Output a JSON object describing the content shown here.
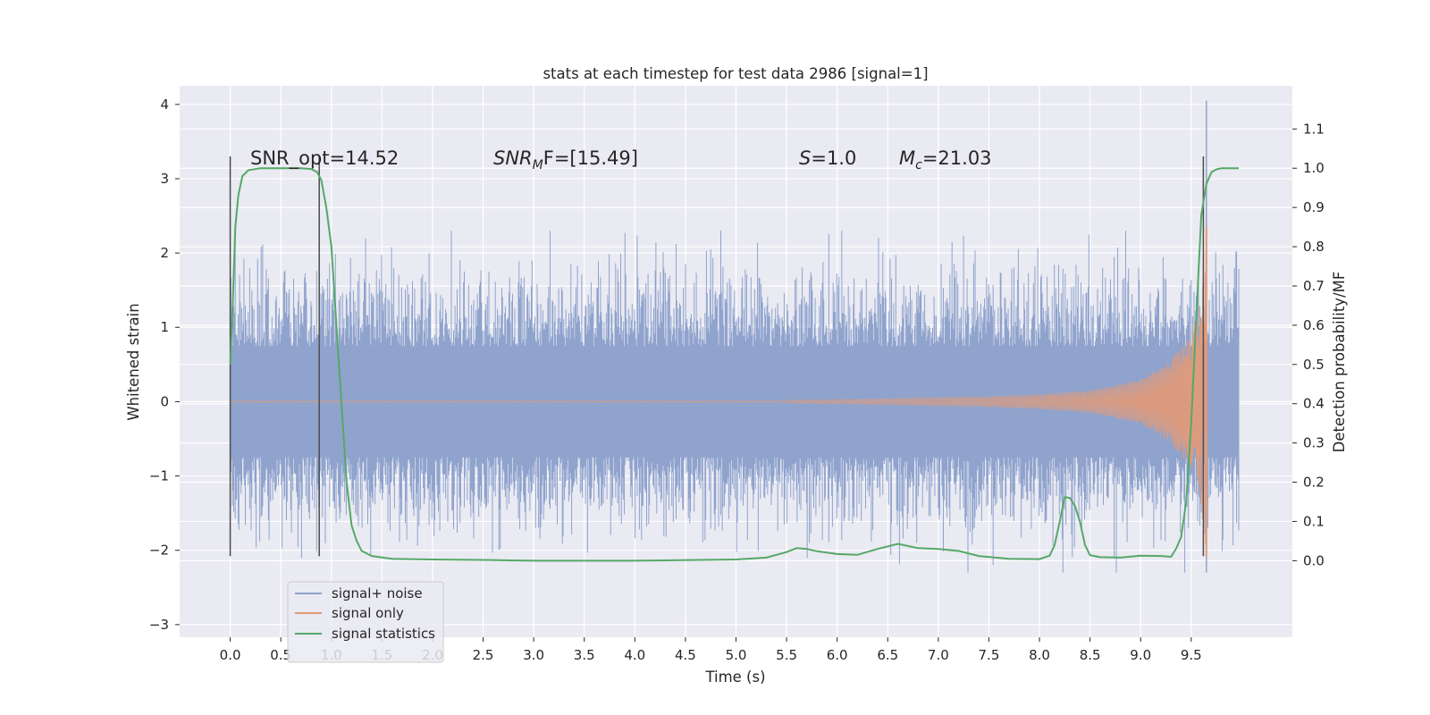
{
  "chart_data": {
    "type": "line",
    "title": "stats at each timestep for test data 2986 [signal=1]",
    "xlabel": "Time (s)",
    "ylabel": "Whitened strain",
    "y2label": "Detection probability/MF",
    "xlim": [
      -0.5,
      10.5
    ],
    "ylim": [
      -3.17,
      4.25
    ],
    "y2lim": [
      -0.195,
      1.21
    ],
    "xticks": [
      "0.0",
      "0.5",
      "1.0",
      "1.5",
      "2.0",
      "2.5",
      "3.0",
      "3.5",
      "4.0",
      "4.5",
      "5.0",
      "5.5",
      "6.0",
      "6.5",
      "7.0",
      "7.5",
      "8.0",
      "8.5",
      "9.0",
      "9.5"
    ],
    "yticks": [
      "4",
      "3",
      "2",
      "1",
      "0",
      "−1",
      "−2",
      "−3"
    ],
    "y2ticks": [
      "1.1",
      "1.0",
      "0.9",
      "0.8",
      "0.7",
      "0.6",
      "0.5",
      "0.4",
      "0.3",
      "0.2",
      "0.1",
      "0.0"
    ],
    "grid": true,
    "legend_position": "lower-left",
    "annotations": {
      "snr_opt": "SNR_opt=14.52",
      "snr_mf_sym": "SNR",
      "snr_mf_sub": "M",
      "snr_mf_rest": "F=[15.49]",
      "s_sym": "S",
      "s_rest": "=1.0",
      "mc_sym": "M",
      "mc_sub": "c",
      "mc_rest": "=21.03"
    },
    "vertical_markers": [
      {
        "x": 0.0,
        "y_range": [
          -2.08,
          3.3
        ]
      },
      {
        "x": 0.88,
        "y_range": [
          -2.08,
          3.3
        ]
      },
      {
        "x": 9.62,
        "y_range": [
          -2.08,
          3.3
        ]
      }
    ],
    "series": [
      {
        "name": "signal+ noise",
        "color": "#8fa3cd",
        "description_of_shape": "noisy band, roughly ±1.0 core with spikes to about ±2.3; x from 0 to 9.97; spike to 4.05 near x=9.65",
        "envelope": {
          "x_range": [
            0.0,
            9.97
          ],
          "core_amplitude": 1.0,
          "peak_amplitude": 2.3,
          "max_spike": {
            "x": 9.65,
            "y": 4.05
          }
        }
      },
      {
        "name": "signal only",
        "color": "#e49a77",
        "description_of_shape": "chirp oscillation around 0, growing amplitude toward merger near x=9.65",
        "envelope": [
          [
            5.5,
            0.02
          ],
          [
            6.5,
            0.04
          ],
          [
            7.5,
            0.07
          ],
          [
            8.0,
            0.1
          ],
          [
            8.5,
            0.15
          ],
          [
            9.0,
            0.3
          ],
          [
            9.3,
            0.55
          ],
          [
            9.5,
            0.9
          ],
          [
            9.6,
            1.4
          ],
          [
            9.65,
            2.35
          ]
        ]
      },
      {
        "name": "signal statistics",
        "color": "#55a868",
        "axis": "right",
        "x": [
          0.0,
          0.02,
          0.05,
          0.08,
          0.12,
          0.18,
          0.3,
          0.5,
          0.7,
          0.8,
          0.86,
          0.9,
          0.95,
          1.0,
          1.05,
          1.1,
          1.15,
          1.2,
          1.25,
          1.3,
          1.4,
          1.6,
          2.0,
          2.5,
          3.0,
          4.0,
          5.0,
          5.3,
          5.5,
          5.6,
          5.7,
          5.8,
          6.0,
          6.2,
          6.4,
          6.6,
          6.8,
          7.0,
          7.2,
          7.4,
          7.7,
          8.0,
          8.1,
          8.15,
          8.2,
          8.25,
          8.3,
          8.35,
          8.4,
          8.45,
          8.5,
          8.6,
          8.8,
          9.0,
          9.2,
          9.3,
          9.35,
          9.4,
          9.45,
          9.5,
          9.55,
          9.6,
          9.65,
          9.7,
          9.75,
          9.8,
          9.9,
          9.97
        ],
        "y": [
          0.5,
          0.62,
          0.85,
          0.93,
          0.98,
          0.995,
          1.0,
          1.0,
          1.0,
          0.998,
          0.99,
          0.97,
          0.9,
          0.8,
          0.6,
          0.4,
          0.2,
          0.09,
          0.05,
          0.025,
          0.012,
          0.005,
          0.003,
          0.002,
          0.0,
          0.0,
          0.003,
          0.008,
          0.022,
          0.032,
          0.03,
          0.024,
          0.017,
          0.015,
          0.03,
          0.043,
          0.032,
          0.03,
          0.025,
          0.012,
          0.005,
          0.004,
          0.013,
          0.04,
          0.1,
          0.162,
          0.16,
          0.14,
          0.1,
          0.04,
          0.014,
          0.009,
          0.008,
          0.013,
          0.012,
          0.01,
          0.03,
          0.06,
          0.15,
          0.35,
          0.62,
          0.88,
          0.96,
          0.99,
          0.997,
          1.0,
          1.0,
          1.0
        ]
      }
    ],
    "colors": {
      "background": "#eaeaf2",
      "grid": "#ffffff",
      "marker": "#4c4c4c"
    }
  }
}
